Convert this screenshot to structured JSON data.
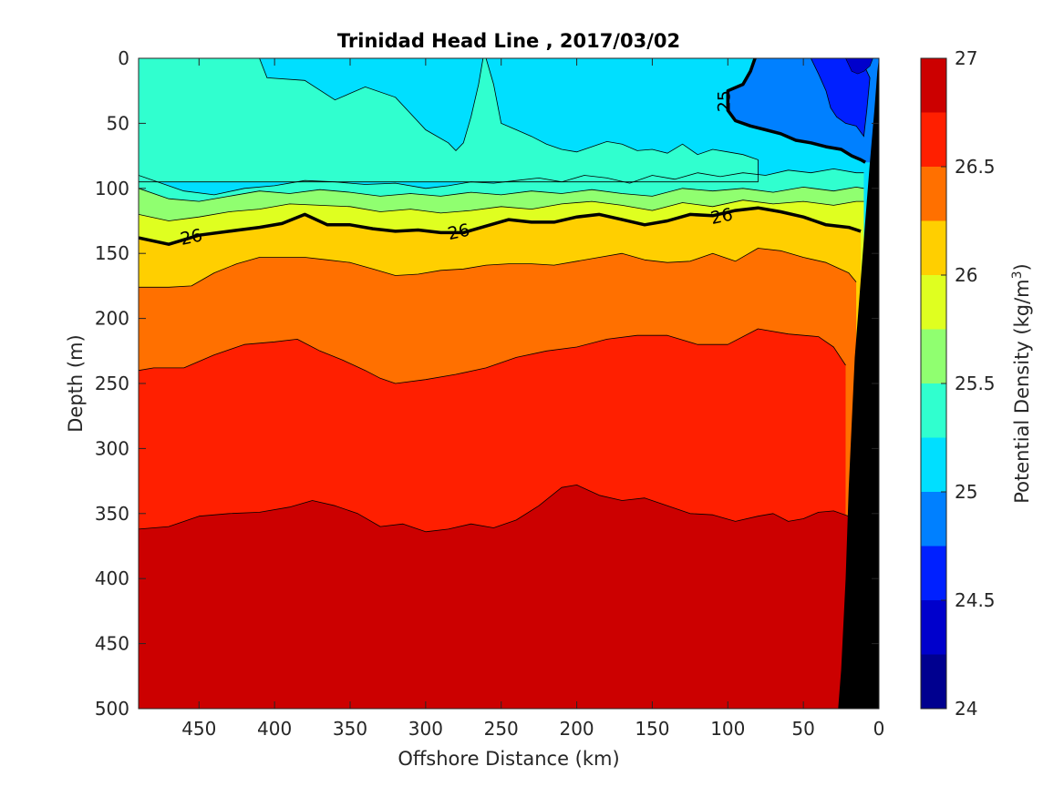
{
  "chart_data": {
    "type": "filled-contour section",
    "title": "Trinidad Head Line , 2017/03/02",
    "xlabel": "Offshore Distance (km)",
    "ylabel": "Depth (m)",
    "colorbar_label": "Potential Density (kg/m",
    "colorbar_label_sup": "3",
    "colorbar_label_end": ")",
    "x_range": [
      490,
      0
    ],
    "x_reversed": true,
    "y_range": [
      0,
      500
    ],
    "y_reversed": true,
    "x_ticks": [
      "450",
      "400",
      "350",
      "300",
      "250",
      "200",
      "150",
      "100",
      "50",
      "0"
    ],
    "y_ticks": [
      "0",
      "50",
      "100",
      "150",
      "200",
      "250",
      "300",
      "350",
      "400",
      "450",
      "500"
    ],
    "colorbar_range": [
      24,
      27
    ],
    "colorbar_ticks": [
      "24",
      "24.5",
      "25",
      "25.5",
      "26",
      "26.5",
      "27"
    ],
    "levels": [
      {
        "v": 24.0,
        "color": "#00008f"
      },
      {
        "v": 24.25,
        "color": "#0000cc"
      },
      {
        "v": 24.5,
        "color": "#0020ff"
      },
      {
        "v": 24.75,
        "color": "#0080ff"
      },
      {
        "v": 25.0,
        "color": "#00dfff"
      },
      {
        "v": 25.25,
        "color": "#30ffcf"
      },
      {
        "v": 25.5,
        "color": "#90ff70"
      },
      {
        "v": 25.75,
        "color": "#dfff20"
      },
      {
        "v": 26.0,
        "color": "#ffcf00"
      },
      {
        "v": 26.25,
        "color": "#ff7000"
      },
      {
        "v": 26.5,
        "color": "#ff1f00"
      },
      {
        "v": 26.75,
        "color": "#cc0000"
      }
    ],
    "contour_labels": [
      {
        "text": "25",
        "x": 102,
        "y": 33
      },
      {
        "text": "26",
        "x": 455,
        "y": 138
      },
      {
        "text": "26",
        "x": 278,
        "y": 134
      },
      {
        "text": "26",
        "x": 104,
        "y": 122
      }
    ],
    "bathymetry_color": "#000000",
    "isopycnals": [
      {
        "sigma": 25.0,
        "bold": true,
        "x": [
          82,
          85,
          90,
          100,
          100,
          95,
          85,
          75,
          65,
          55,
          45,
          35,
          25,
          18,
          12,
          9
        ],
        "y": [
          0,
          10,
          20,
          25,
          40,
          48,
          52,
          55,
          58,
          63,
          65,
          68,
          70,
          75,
          78,
          80
        ]
      },
      {
        "sigma": 25.25,
        "x": [
          490,
          460,
          440,
          420,
          400,
          380,
          360,
          340,
          320,
          300,
          285,
          270,
          255,
          240,
          225,
          210,
          195,
          180,
          165,
          150,
          135,
          120,
          105,
          90,
          75,
          60,
          45,
          30,
          15,
          10
        ],
        "y": [
          90,
          102,
          105,
          100,
          98,
          94,
          95,
          97,
          96,
          100,
          98,
          95,
          96,
          94,
          92,
          95,
          90,
          92,
          96,
          90,
          93,
          88,
          91,
          88,
          90,
          86,
          88,
          85,
          88,
          88
        ]
      },
      {
        "sigma": 25.5,
        "x": [
          490,
          470,
          450,
          430,
          410,
          390,
          370,
          350,
          330,
          310,
          290,
          270,
          250,
          230,
          210,
          190,
          170,
          150,
          130,
          110,
          90,
          70,
          50,
          30,
          15,
          10
        ],
        "y": [
          100,
          108,
          110,
          106,
          102,
          104,
          101,
          103,
          106,
          104,
          106,
          103,
          105,
          102,
          104,
          101,
          104,
          106,
          100,
          102,
          100,
          103,
          99,
          102,
          99,
          100
        ]
      },
      {
        "sigma": 25.75,
        "x": [
          490,
          470,
          450,
          430,
          410,
          390,
          370,
          350,
          330,
          310,
          290,
          270,
          250,
          230,
          210,
          190,
          170,
          150,
          130,
          110,
          90,
          70,
          50,
          30,
          15,
          10
        ],
        "y": [
          120,
          125,
          122,
          118,
          116,
          112,
          113,
          114,
          118,
          116,
          119,
          117,
          114,
          116,
          112,
          110,
          113,
          117,
          111,
          114,
          109,
          112,
          110,
          113,
          110,
          110
        ]
      },
      {
        "sigma": 26.0,
        "bold": true,
        "x": [
          490,
          470,
          450,
          430,
          410,
          395,
          380,
          365,
          350,
          335,
          320,
          305,
          290,
          275,
          260,
          245,
          230,
          215,
          200,
          185,
          170,
          155,
          140,
          125,
          110,
          95,
          80,
          65,
          50,
          35,
          20,
          12
        ],
        "y": [
          138,
          143,
          136,
          133,
          130,
          127,
          120,
          128,
          128,
          131,
          133,
          132,
          134,
          134,
          129,
          124,
          126,
          126,
          122,
          120,
          124,
          128,
          125,
          120,
          121,
          117,
          115,
          118,
          122,
          128,
          130,
          133
        ]
      },
      {
        "sigma": 26.25,
        "x": [
          490,
          470,
          455,
          440,
          425,
          410,
          395,
          380,
          365,
          350,
          335,
          320,
          305,
          290,
          275,
          260,
          245,
          230,
          215,
          200,
          185,
          170,
          155,
          140,
          125,
          110,
          95,
          80,
          65,
          50,
          35,
          20,
          15
        ],
        "y": [
          176,
          176,
          175,
          165,
          158,
          153,
          153,
          153,
          155,
          157,
          162,
          167,
          166,
          163,
          162,
          159,
          158,
          158,
          159,
          156,
          153,
          150,
          155,
          157,
          156,
          150,
          156,
          146,
          148,
          153,
          157,
          165,
          172
        ]
      },
      {
        "sigma": 26.5,
        "x": [
          490,
          480,
          460,
          440,
          420,
          400,
          385,
          370,
          355,
          340,
          330,
          320,
          300,
          280,
          260,
          240,
          220,
          200,
          180,
          160,
          140,
          120,
          100,
          80,
          60,
          40,
          30,
          22
        ],
        "y": [
          240,
          238,
          238,
          228,
          220,
          218,
          216,
          225,
          232,
          240,
          246,
          250,
          247,
          243,
          238,
          230,
          225,
          222,
          216,
          213,
          213,
          220,
          220,
          208,
          212,
          214,
          222,
          236
        ]
      },
      {
        "sigma": 26.75,
        "x": [
          490,
          470,
          450,
          430,
          410,
          390,
          375,
          360,
          345,
          330,
          315,
          300,
          285,
          270,
          255,
          240,
          225,
          210,
          200,
          185,
          170,
          155,
          140,
          125,
          110,
          95,
          80,
          70,
          60,
          50,
          40,
          30,
          20
        ],
        "y": [
          362,
          360,
          352,
          350,
          349,
          345,
          340,
          344,
          350,
          360,
          358,
          364,
          362,
          358,
          361,
          355,
          344,
          330,
          328,
          336,
          340,
          338,
          344,
          350,
          351,
          356,
          352,
          350,
          356,
          354,
          349,
          348,
          352
        ]
      }
    ],
    "bathymetry": {
      "x": [
        0,
        1,
        3,
        6,
        8,
        10,
        12,
        14,
        16,
        18,
        20,
        22,
        25,
        27,
        0
      ],
      "y": [
        0,
        10,
        40,
        80,
        110,
        140,
        170,
        200,
        230,
        280,
        330,
        400,
        470,
        500,
        500
      ]
    },
    "grid": false
  }
}
